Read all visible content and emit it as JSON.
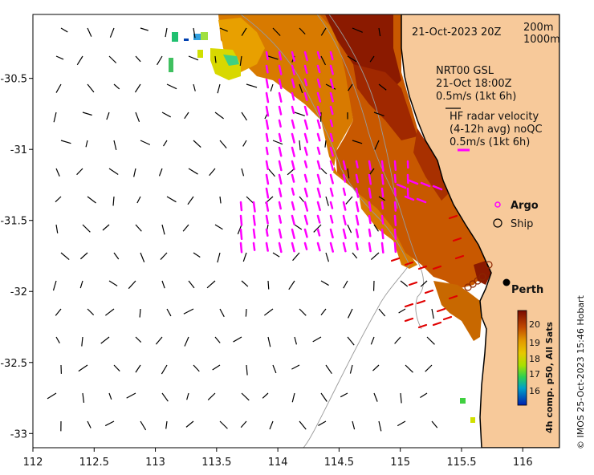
{
  "map": {
    "title_date": "21-Oct-2023 20Z",
    "depth_contours": [
      "200m",
      "1000m"
    ],
    "model_label": [
      "NRT00 GSL",
      "21-Oct 18:00Z",
      "0.5m/s (1kt 6h)"
    ],
    "radar_label": [
      "HF radar velocity",
      "(4-12h avg) noQC",
      "0.5m/s (1kt 6h)"
    ],
    "argo_label": "Argo",
    "ship_label": "Ship",
    "city": "Perth",
    "colorbar_title": "4h comp. p50, All Sats",
    "colorbar_ticks": [
      "20",
      "19",
      "18",
      "17",
      "16"
    ],
    "credit": "© IMOS 25-Oct-2023 15:46 Hobart",
    "x_axis": {
      "ticks": [
        "112",
        "112.5",
        "113",
        "113.5",
        "114",
        "114.5",
        "115",
        "115.5",
        "116"
      ],
      "lim": [
        112,
        116.3
      ]
    },
    "y_axis": {
      "ticks": [
        "-30.5",
        "-31",
        "-31.5",
        "-32",
        "-32.5",
        "-33"
      ],
      "lim": [
        -33.1,
        -30.05
      ]
    },
    "colors": {
      "land": "#f7c99a",
      "vector_model": "#000000",
      "vector_radar": "#ff00ff",
      "argo": "#ff00ff",
      "sst_hot": "#8b1a00",
      "sst_mid": "#d87a00"
    }
  }
}
